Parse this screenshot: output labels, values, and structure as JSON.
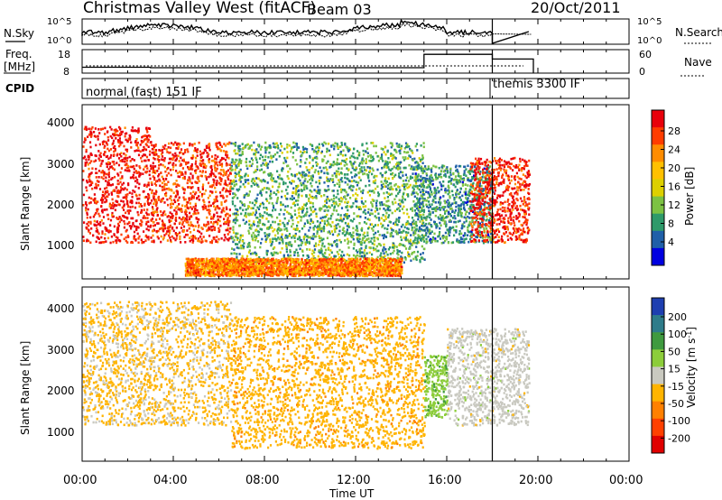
{
  "header": {
    "title": "Christmas Valley West (fitACF)",
    "beam": "Beam 03",
    "date": "20/Oct/2011"
  },
  "sky_panel": {
    "left_label": "N.Sky",
    "right_label": "N.Search",
    "left_ticks": [
      "10^5",
      "10^0"
    ],
    "right_ticks": [
      "10^5",
      "10^0"
    ]
  },
  "freq_panel": {
    "left_label_1": "Freq.",
    "left_label_2": "[MHz]",
    "right_label": "Nave",
    "left_ticks": [
      "18",
      "8"
    ],
    "right_ticks": [
      "60",
      "0"
    ]
  },
  "cpid": {
    "label": "CPID",
    "mode_1": "normal (fast) 151 IF",
    "mode_2": "themis 3300 IF"
  },
  "x_axis": {
    "label": "Time UT",
    "ticks": [
      "00:00",
      "04:00",
      "08:00",
      "12:00",
      "16:00",
      "20:00",
      "00:00"
    ]
  },
  "power_panel": {
    "ylabel": "Slant Range [km]",
    "yticks": [
      "4000",
      "3000",
      "2000",
      "1000"
    ],
    "colorbar_label": "Power [dB]",
    "colorbar_ticks": [
      "28",
      "24",
      "20",
      "16",
      "12",
      "8",
      "4"
    ],
    "colors": [
      "#e8000b",
      "#ff3c00",
      "#ff8c00",
      "#ffc000",
      "#ddd000",
      "#7cc243",
      "#2e9a6a",
      "#1f5fa8",
      "#0000e0"
    ]
  },
  "velocity_panel": {
    "ylabel": "Slant Range [km]",
    "yticks": [
      "4000",
      "3000",
      "2000",
      "1000"
    ],
    "colorbar_label": "Velocity [m s^-1]",
    "colorbar_ticks": [
      "200",
      "100",
      "50",
      "15",
      "-15",
      "-50",
      "-100",
      "-200"
    ],
    "colors": [
      "#1e3fb0",
      "#2e7c8a",
      "#3f9a3f",
      "#8ccd3a",
      "#c9c9c0",
      "#ffb400",
      "#ff8000",
      "#ff4000",
      "#e00000"
    ]
  },
  "chart_data": {
    "type": "heatmap",
    "title": "Christmas Valley West (fitACF)",
    "xlabel": "Time UT",
    "ylabel": "Slant Range [km]",
    "xlim": [
      "00:00",
      "24:00"
    ],
    "ylim": [
      0,
      4500
    ],
    "legend_position": "right",
    "power_scale_db": [
      0,
      30
    ],
    "velocity_scale_ms": [
      -250,
      250
    ],
    "power_features": [
      {
        "t_start": 0.0,
        "t_end": 3.0,
        "range_start": 1000,
        "range_end": 4000,
        "power_db": 28
      },
      {
        "t_start": 3.0,
        "t_end": 6.5,
        "range_start": 1000,
        "range_end": 3600,
        "power_db": 26
      },
      {
        "t_start": 6.5,
        "t_end": 15.0,
        "range_start": 500,
        "range_end": 3600,
        "power_db": 10
      },
      {
        "t_start": 4.5,
        "t_end": 14.0,
        "range_start": 150,
        "range_end": 600,
        "power_db": 22
      },
      {
        "t_start": 14.5,
        "t_end": 18.0,
        "range_start": 1000,
        "range_end": 3000,
        "power_db": 8
      },
      {
        "t_start": 17.0,
        "t_end": 19.6,
        "range_start": 1000,
        "range_end": 3200,
        "power_db": 27
      }
    ],
    "velocity_features": [
      {
        "t_start": 0.0,
        "t_end": 6.5,
        "range_start": 1000,
        "range_end": 4200,
        "velocity_ms": -40
      },
      {
        "t_start": 6.5,
        "t_end": 15.0,
        "range_start": 400,
        "range_end": 3800,
        "velocity_ms": -60
      },
      {
        "t_start": 15.0,
        "t_end": 16.0,
        "range_start": 1200,
        "range_end": 2800,
        "velocity_ms": 60
      },
      {
        "t_start": 16.0,
        "t_end": 19.6,
        "range_start": 1000,
        "range_end": 3500,
        "velocity_ms": 0
      }
    ],
    "freq_mhz": [
      {
        "t_start": 0.0,
        "t_end": 3.0,
        "value": 10.5
      },
      {
        "t_start": 3.0,
        "t_end": 15.0,
        "value": 10.3
      },
      {
        "t_start": 15.0,
        "t_end": 18.0,
        "value": 16.0
      },
      {
        "t_start": 18.0,
        "t_end": 19.8,
        "value": 14.0
      }
    ],
    "mode_change_ut": 18.0
  }
}
